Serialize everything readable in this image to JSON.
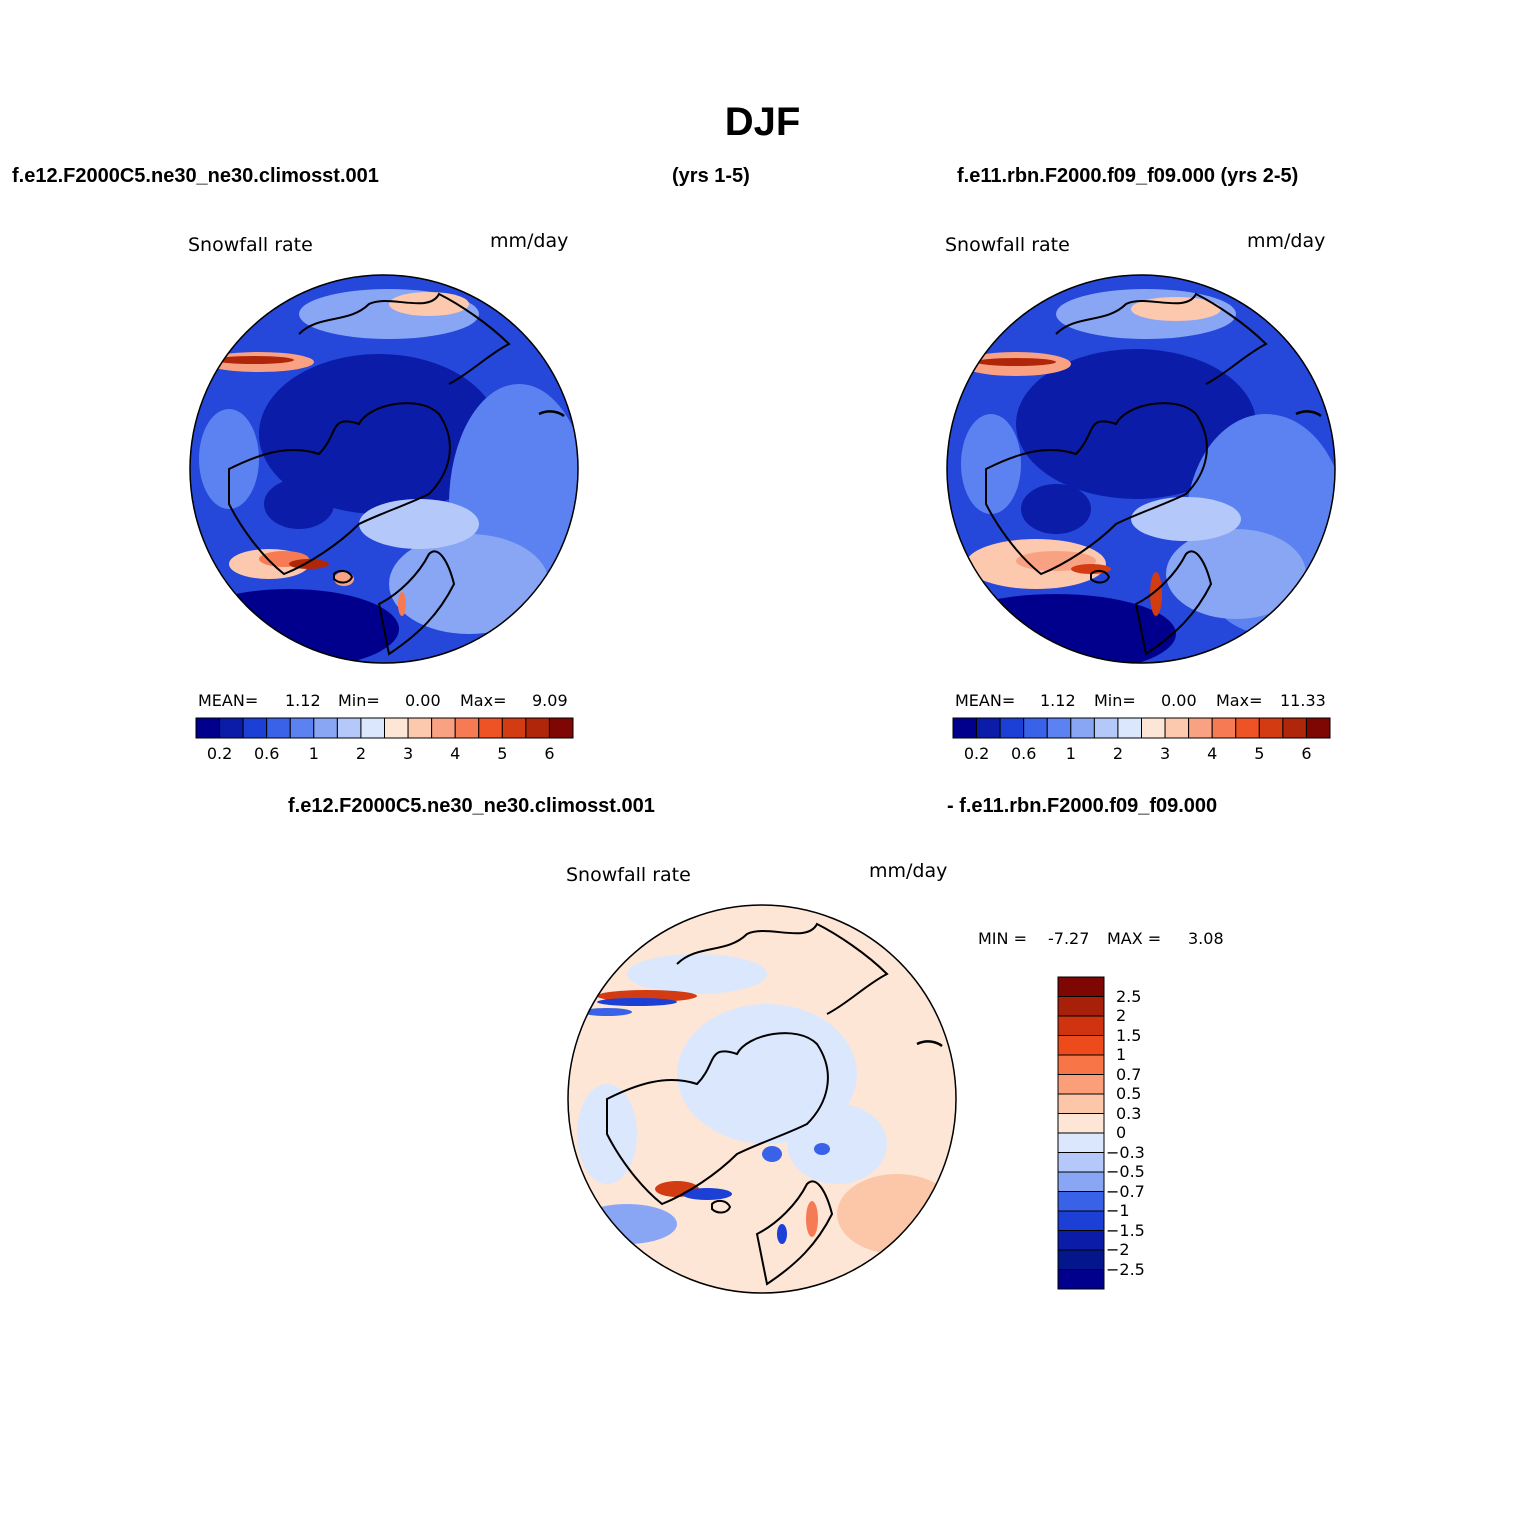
{
  "title": "DJF",
  "case_a": {
    "name": "f.e12.F2000C5.ne30_ne30.climosst.001",
    "years": "(yrs 1-5)"
  },
  "case_b": {
    "name": "f.e11.rbn.F2000.f09_f09.000 (yrs 2-5)"
  },
  "diff_header": {
    "left": "f.e12.F2000C5.ne30_ne30.climosst.001",
    "right": "- f.e11.rbn.F2000.f09_f09.000"
  },
  "panels": [
    {
      "variable": "Snowfall rate",
      "units": "mm/day",
      "mean_label": "MEAN=",
      "mean": "1.12",
      "min_label": "Min=",
      "min": "0.00",
      "max_label": "Max=",
      "max": "9.09"
    },
    {
      "variable": "Snowfall rate",
      "units": "mm/day",
      "mean_label": "MEAN=",
      "mean": "1.12",
      "min_label": "Min=",
      "min": "0.00",
      "max_label": "Max=",
      "max": "11.33"
    }
  ],
  "diff_panel": {
    "variable": "Snowfall rate",
    "units": "mm/day",
    "min_label": "MIN =",
    "min": "-7.27",
    "max_label": "MAX =",
    "max": "3.08"
  },
  "colorbar_main": {
    "colors": [
      "#00008c",
      "#0a1ca8",
      "#1c3fd6",
      "#3a62e8",
      "#5b82f0",
      "#89a6f5",
      "#b5c8fa",
      "#dbe7fd",
      "#fde6d6",
      "#fcc8ae",
      "#f9a283",
      "#f67b55",
      "#ee5326",
      "#d33c12",
      "#b0260a",
      "#7e0704"
    ],
    "tick_labels": [
      "0.2",
      "0.6",
      "1",
      "2",
      "3",
      "4",
      "5",
      "6"
    ]
  },
  "colorbar_diff": {
    "colors": [
      "#7e0704",
      "#a8200a",
      "#cf330f",
      "#ee4b1c",
      "#f77546",
      "#fa9f7a",
      "#fcc6a8",
      "#fde6d6",
      "#dbe7fd",
      "#b5c8fa",
      "#89a6f5",
      "#3a62e8",
      "#1c3fd6",
      "#0a1ca8",
      "#04168c",
      "#00008c"
    ],
    "tick_labels": [
      "2.5",
      "2",
      "1.5",
      "1",
      "0.7",
      "0.5",
      "0.3",
      "0",
      "−0.3",
      "−0.5",
      "−0.7",
      "−1",
      "−1.5",
      "−2",
      "−2.5"
    ]
  },
  "map_colors": {
    "deep_blue": "#0a1ca8",
    "blue": "#2548da",
    "mid_blue": "#5b82f0",
    "light_blue": "#b5c8fa",
    "pale_blue": "#dbe7fd",
    "peach": "#fde6d6",
    "salmon": "#f9a283",
    "red": "#d33c12",
    "dark_red": "#7e0704"
  }
}
